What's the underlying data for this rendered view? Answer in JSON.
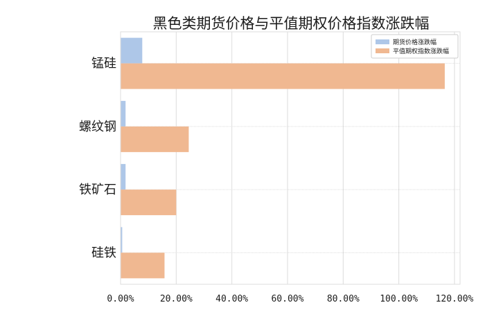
{
  "chart_data": {
    "type": "bar",
    "orientation": "horizontal",
    "title": "黑色类期货价格与平值期权价格指数涨跌幅",
    "categories": [
      "锰硅",
      "螺纹钢",
      "铁矿石",
      "硅铁"
    ],
    "series": [
      {
        "name": "期货价格涨跌幅",
        "color": "#aec7e8",
        "values": [
          7.8,
          1.8,
          1.8,
          0.6
        ]
      },
      {
        "name": "平值期权指数涨跌幅",
        "color": "#f0b891",
        "values": [
          116.5,
          24.5,
          20.0,
          15.8
        ]
      }
    ],
    "xticks": [
      "0.00%",
      "20.00%",
      "40.00%",
      "60.00%",
      "80.00%",
      "100.00%",
      "120.00%"
    ],
    "xlim": [
      0,
      122
    ],
    "grid": true,
    "legend": "top-right"
  }
}
